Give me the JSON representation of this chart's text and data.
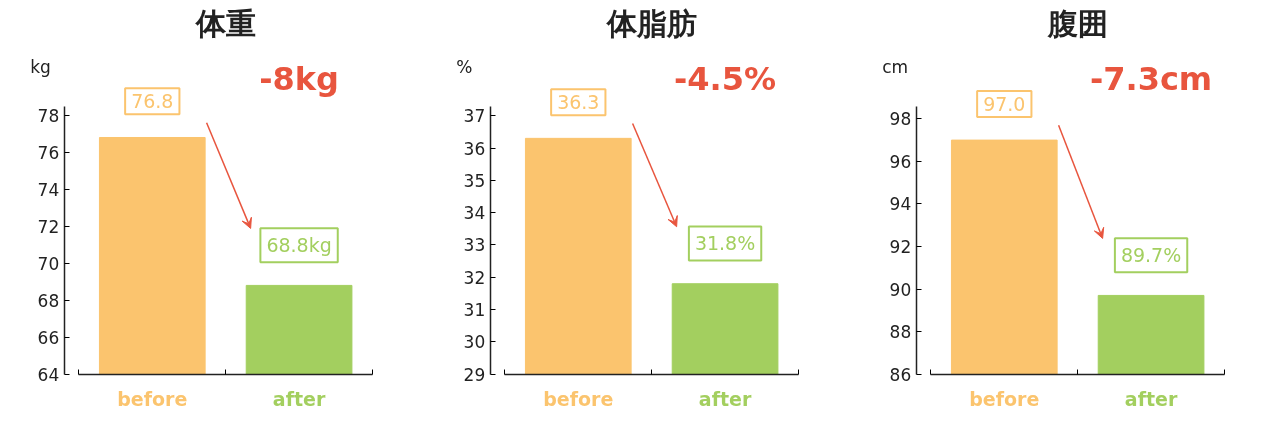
{
  "chart_data": [
    {
      "type": "bar",
      "title": "体重",
      "ylabel": "kg",
      "categories": [
        "before",
        "after"
      ],
      "values": [
        76.8,
        68.8
      ],
      "colors": [
        "#fbc46e",
        "#a3cf5f"
      ],
      "ylim": [
        64,
        78.5
      ],
      "yticks": [
        64,
        66,
        68,
        70,
        72,
        74,
        76,
        78
      ],
      "value_labels": [
        "76.8",
        "68.8kg"
      ],
      "annotations": [
        "-8kg"
      ]
    },
    {
      "type": "bar",
      "title": "体脂肪",
      "ylabel": "%",
      "categories": [
        "before",
        "after"
      ],
      "values": [
        36.3,
        31.8
      ],
      "colors": [
        "#fbc46e",
        "#a3cf5f"
      ],
      "ylim": [
        29,
        37.3
      ],
      "yticks": [
        29,
        30,
        31,
        32,
        33,
        34,
        35,
        36,
        37
      ],
      "value_labels": [
        "36.3",
        "31.8%"
      ],
      "annotations": [
        "-4.5%"
      ]
    },
    {
      "type": "bar",
      "title": "腹囲",
      "ylabel": "cm",
      "categories": [
        "before",
        "after"
      ],
      "values": [
        97.0,
        89.7
      ],
      "colors": [
        "#fbc46e",
        "#a3cf5f"
      ],
      "ylim": [
        86,
        98.6
      ],
      "yticks": [
        86,
        88,
        90,
        92,
        94,
        96,
        98
      ],
      "value_labels": [
        "97.0",
        "89.7%"
      ],
      "annotations": [
        "-7.3cm"
      ]
    }
  ]
}
